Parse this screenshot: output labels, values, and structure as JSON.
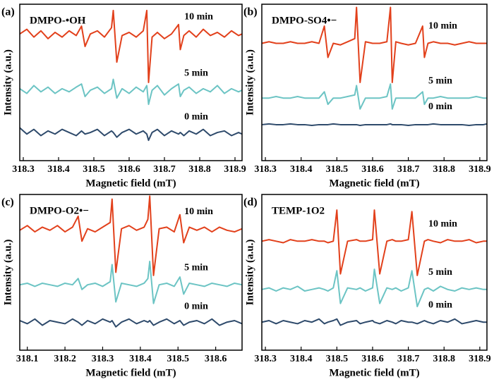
{
  "chart_data": [
    {
      "type": "line",
      "panel_label": "(a)",
      "annotation": "DMPO-•OH",
      "xlabel": "Magnetic field (mT)",
      "ylabel": "Intensity (a.u.)",
      "xlim": [
        318.29,
        318.92
      ],
      "xticks": [
        318.3,
        318.4,
        318.5,
        318.6,
        318.7,
        318.8,
        318.9
      ],
      "ylim": [
        0,
        10
      ],
      "x": [
        318.29,
        318.31,
        318.33,
        318.35,
        318.37,
        318.39,
        318.41,
        318.43,
        318.45,
        318.465,
        318.475,
        318.49,
        318.51,
        318.53,
        318.55,
        318.555,
        318.565,
        318.58,
        318.6,
        318.62,
        318.64,
        318.65,
        318.655,
        318.665,
        318.68,
        318.7,
        318.72,
        318.74,
        318.745,
        318.755,
        318.77,
        318.79,
        318.81,
        318.83,
        318.85,
        318.87,
        318.89,
        318.91,
        318.92
      ],
      "series": [
        {
          "name": "10 min",
          "color": "#e2401b",
          "values": [
            8.1,
            8.4,
            7.9,
            8.3,
            7.8,
            8.2,
            7.9,
            8.3,
            8.0,
            8.6,
            7.3,
            8.1,
            8.3,
            7.9,
            8.5,
            9.6,
            6.3,
            8.0,
            8.2,
            7.9,
            8.3,
            9.6,
            5.0,
            7.9,
            8.2,
            7.8,
            8.1,
            8.7,
            7.1,
            8.0,
            8.3,
            7.9,
            8.4,
            8.0,
            8.2,
            7.9,
            8.3,
            8.0,
            8.1
          ]
        },
        {
          "name": "5 min",
          "color": "#6cc4c4",
          "values": [
            4.6,
            4.3,
            4.8,
            4.4,
            4.7,
            4.3,
            4.6,
            4.4,
            4.7,
            4.9,
            4.1,
            4.5,
            4.7,
            4.3,
            4.6,
            5.2,
            4.0,
            4.6,
            4.3,
            4.7,
            4.4,
            4.8,
            3.6,
            4.5,
            4.8,
            4.2,
            4.6,
            4.9,
            4.1,
            4.5,
            4.7,
            4.3,
            4.6,
            4.4,
            4.8,
            4.3,
            4.6,
            4.4,
            4.5
          ]
        },
        {
          "name": "0 min",
          "color": "#2e4a6b",
          "values": [
            2.1,
            1.7,
            2.0,
            1.6,
            1.9,
            1.7,
            2.0,
            1.8,
            1.6,
            1.9,
            1.7,
            1.8,
            2.0,
            1.6,
            1.9,
            1.8,
            1.5,
            1.8,
            2.0,
            1.7,
            1.9,
            1.7,
            1.3,
            1.8,
            2.0,
            1.6,
            1.9,
            1.7,
            1.8,
            1.6,
            1.9,
            1.7,
            2.0,
            1.6,
            1.8,
            1.9,
            1.6,
            1.8,
            1.7
          ]
        }
      ]
    },
    {
      "type": "line",
      "panel_label": "(b)",
      "annotation": "DMPO-SO4•−",
      "xlabel": "Magnetic field (mT)",
      "ylabel": "Intensity (a.u.)",
      "xlim": [
        318.29,
        318.92
      ],
      "xticks": [
        318.3,
        318.4,
        318.5,
        318.6,
        318.7,
        318.8,
        318.9
      ],
      "ylim": [
        0,
        10
      ],
      "x": [
        318.29,
        318.31,
        318.33,
        318.35,
        318.37,
        318.39,
        318.41,
        318.43,
        318.45,
        318.465,
        318.475,
        318.49,
        318.51,
        318.53,
        318.55,
        318.555,
        318.565,
        318.58,
        318.6,
        318.62,
        318.64,
        318.65,
        318.655,
        318.665,
        318.68,
        318.7,
        318.72,
        318.74,
        318.745,
        318.755,
        318.77,
        318.79,
        318.81,
        318.83,
        318.85,
        318.87,
        318.89,
        318.91,
        318.92
      ],
      "series": [
        {
          "name": "10 min",
          "color": "#e2401b",
          "values": [
            7.5,
            7.6,
            7.5,
            7.5,
            7.6,
            7.5,
            7.5,
            7.6,
            7.5,
            8.6,
            6.6,
            7.5,
            7.4,
            7.6,
            7.8,
            9.8,
            5.0,
            7.6,
            7.5,
            7.5,
            7.6,
            9.8,
            5.0,
            7.6,
            7.5,
            7.4,
            7.5,
            8.6,
            6.6,
            7.5,
            7.6,
            7.5,
            7.5,
            7.4,
            7.5,
            7.6,
            7.5,
            7.5,
            7.5
          ]
        },
        {
          "name": "5 min",
          "color": "#6cc4c4",
          "values": [
            4.0,
            4.0,
            4.1,
            4.0,
            4.0,
            4.1,
            4.0,
            4.0,
            4.0,
            4.4,
            3.6,
            4.0,
            4.0,
            4.1,
            4.2,
            4.8,
            3.3,
            4.0,
            4.0,
            4.0,
            4.1,
            4.9,
            3.3,
            4.0,
            4.0,
            4.0,
            4.0,
            4.4,
            3.6,
            4.0,
            4.0,
            4.1,
            4.0,
            4.0,
            4.0,
            4.0,
            4.1,
            4.0,
            4.0
          ]
        },
        {
          "name": "0 min",
          "color": "#2e4a6b",
          "values": [
            2.3,
            2.35,
            2.3,
            2.3,
            2.35,
            2.3,
            2.3,
            2.25,
            2.3,
            2.3,
            2.3,
            2.35,
            2.3,
            2.3,
            2.3,
            2.3,
            2.25,
            2.3,
            2.3,
            2.3,
            2.3,
            2.35,
            2.3,
            2.3,
            2.3,
            2.25,
            2.3,
            2.3,
            2.3,
            2.3,
            2.35,
            2.3,
            2.3,
            2.3,
            2.3,
            2.25,
            2.3,
            2.3,
            2.35
          ]
        }
      ]
    },
    {
      "type": "line",
      "panel_label": "(c)",
      "annotation": "DMPO-O2•−",
      "xlabel": "Magnetic field (mT)",
      "ylabel": "Intensity (a.u.)",
      "xlim": [
        318.08,
        318.67
      ],
      "xticks": [
        318.1,
        318.2,
        318.3,
        318.4,
        318.5,
        318.6
      ],
      "ylim": [
        0,
        10
      ],
      "x": [
        318.08,
        318.1,
        318.12,
        318.14,
        318.16,
        318.18,
        318.2,
        318.22,
        318.235,
        318.245,
        318.26,
        318.28,
        318.3,
        318.32,
        318.325,
        318.335,
        318.35,
        318.37,
        318.39,
        318.41,
        318.42,
        318.425,
        318.435,
        318.45,
        318.47,
        318.49,
        318.505,
        318.515,
        318.53,
        318.55,
        318.57,
        318.59,
        318.61,
        318.63,
        318.65,
        318.67
      ],
      "series": [
        {
          "name": "10 min",
          "color": "#e2401b",
          "values": [
            7.7,
            8.0,
            7.6,
            7.9,
            7.7,
            8.0,
            7.6,
            7.9,
            8.6,
            7.0,
            7.8,
            7.6,
            7.9,
            8.2,
            9.7,
            5.0,
            7.8,
            8.0,
            7.7,
            7.9,
            8.4,
            9.9,
            4.8,
            7.8,
            7.9,
            7.6,
            8.7,
            6.9,
            7.9,
            7.7,
            7.9,
            7.6,
            7.9,
            7.7,
            7.6,
            7.8
          ]
        },
        {
          "name": "5 min",
          "color": "#6cc4c4",
          "values": [
            4.2,
            4.3,
            4.1,
            4.3,
            4.2,
            4.1,
            4.3,
            4.2,
            4.6,
            3.9,
            4.2,
            4.3,
            4.1,
            4.4,
            5.5,
            3.1,
            4.3,
            4.2,
            4.1,
            4.3,
            4.6,
            5.7,
            3.0,
            4.2,
            4.3,
            4.1,
            4.7,
            3.6,
            4.3,
            4.2,
            4.1,
            4.3,
            4.2,
            4.1,
            4.3,
            4.2
          ]
        },
        {
          "name": "0 min",
          "color": "#2e4a6b",
          "values": [
            1.9,
            1.7,
            2.0,
            1.6,
            1.9,
            1.8,
            1.7,
            2.0,
            1.8,
            1.6,
            1.9,
            1.7,
            2.0,
            1.8,
            1.9,
            1.5,
            1.8,
            2.0,
            1.7,
            1.9,
            1.8,
            1.9,
            1.6,
            1.8,
            2.0,
            1.7,
            1.9,
            1.6,
            1.8,
            1.9,
            1.7,
            2.0,
            1.6,
            1.8,
            1.9,
            1.7
          ]
        }
      ]
    },
    {
      "type": "line",
      "panel_label": "(d)",
      "annotation": "TEMP-1O2",
      "xlabel": "Magnetic field (mT)",
      "ylabel": "Intensity (a.u.)",
      "xlim": [
        318.29,
        318.92
      ],
      "xticks": [
        318.3,
        318.4,
        318.5,
        318.6,
        318.7,
        318.8,
        318.9
      ],
      "ylim": [
        0,
        10
      ],
      "x": [
        318.29,
        318.31,
        318.33,
        318.35,
        318.37,
        318.39,
        318.41,
        318.43,
        318.45,
        318.465,
        318.475,
        318.49,
        318.5,
        318.51,
        318.53,
        318.555,
        318.565,
        318.58,
        318.6,
        318.605,
        318.62,
        318.64,
        318.655,
        318.665,
        318.68,
        318.7,
        318.71,
        318.725,
        318.745,
        318.755,
        318.77,
        318.79,
        318.81,
        318.83,
        318.85,
        318.87,
        318.89,
        318.91,
        318.92
      ],
      "series": [
        {
          "name": "10 min",
          "color": "#e2401b",
          "values": [
            7.0,
            7.1,
            7.0,
            6.9,
            7.1,
            7.0,
            7.0,
            7.1,
            7.0,
            7.0,
            6.9,
            7.0,
            9.0,
            4.9,
            7.0,
            7.1,
            7.0,
            7.0,
            7.1,
            9.0,
            4.9,
            7.0,
            7.1,
            7.0,
            7.0,
            7.1,
            8.9,
            4.8,
            7.0,
            7.1,
            7.0,
            6.9,
            7.1,
            7.0,
            7.0,
            7.1,
            6.9,
            7.0,
            7.0
          ]
        },
        {
          "name": "5 min",
          "color": "#6cc4c4",
          "values": [
            3.9,
            4.0,
            3.8,
            4.0,
            3.9,
            4.1,
            3.8,
            3.9,
            4.0,
            3.9,
            3.8,
            4.0,
            5.1,
            3.0,
            4.0,
            3.9,
            4.0,
            3.8,
            4.0,
            5.2,
            3.0,
            4.0,
            3.9,
            4.0,
            3.8,
            4.0,
            5.1,
            2.8,
            3.9,
            4.0,
            3.8,
            4.1,
            3.9,
            3.8,
            4.0,
            3.9,
            4.0,
            3.9,
            3.9
          ]
        },
        {
          "name": "0 min",
          "color": "#2e4a6b",
          "values": [
            1.8,
            1.9,
            1.7,
            1.9,
            1.8,
            1.7,
            1.9,
            1.8,
            2.0,
            1.7,
            1.8,
            1.9,
            2.0,
            1.6,
            1.8,
            1.9,
            1.7,
            1.8,
            1.9,
            1.8,
            1.7,
            1.9,
            1.8,
            1.7,
            1.9,
            1.8,
            1.8,
            1.7,
            1.9,
            1.8,
            1.7,
            1.9,
            1.8,
            2.0,
            1.7,
            1.8,
            1.9,
            1.8,
            1.8
          ]
        }
      ]
    }
  ]
}
